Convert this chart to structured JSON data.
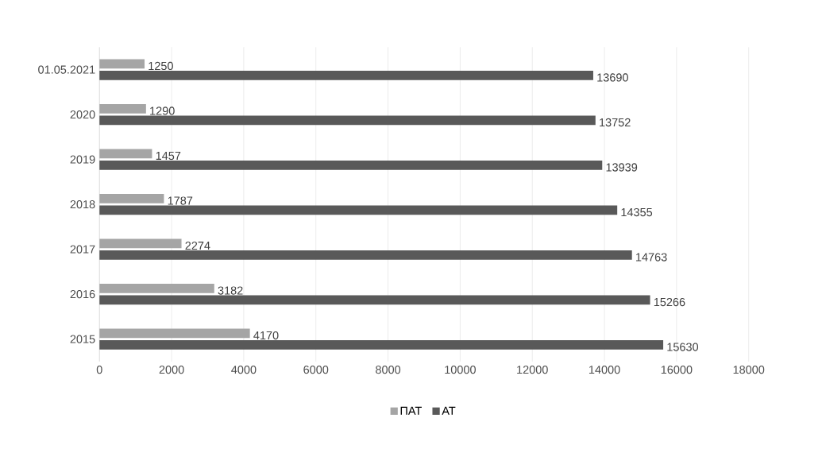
{
  "chart_data": {
    "type": "bar",
    "orientation": "horizontal",
    "categories": [
      "01.05.2021",
      "2020",
      "2019",
      "2018",
      "2017",
      "2016",
      "2015"
    ],
    "series": [
      {
        "name": "ПАТ",
        "color": "#a5a5a5",
        "values": [
          1250,
          1290,
          1457,
          1787,
          2274,
          3182,
          4170
        ]
      },
      {
        "name": "АТ",
        "color": "#595959",
        "values": [
          13690,
          13752,
          13939,
          14355,
          14763,
          15266,
          15630
        ]
      }
    ],
    "xlim": [
      0,
      18000
    ],
    "xticks": [
      0,
      2000,
      4000,
      6000,
      8000,
      10000,
      12000,
      14000,
      16000,
      18000
    ],
    "grid": "x",
    "legend": "bottom",
    "data_labels": true
  }
}
